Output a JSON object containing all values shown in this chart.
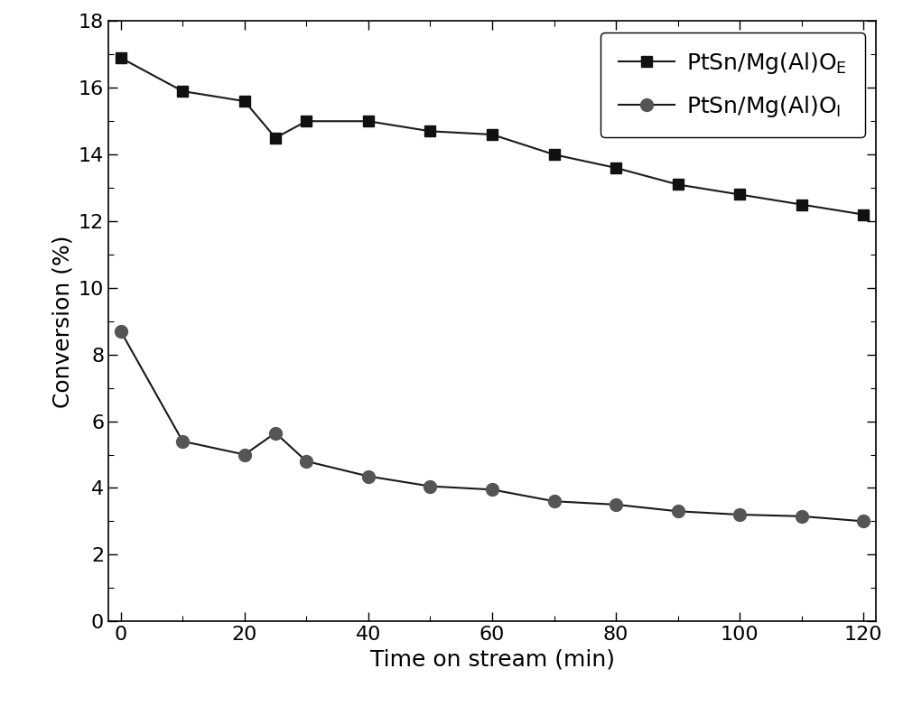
{
  "series1_label": "PtSn/Mg(Al)O$_\\mathrm{E}$",
  "series2_label": "PtSn/Mg(Al)O$_\\mathrm{I}$",
  "series1_x": [
    0,
    10,
    20,
    25,
    30,
    40,
    50,
    60,
    70,
    80,
    90,
    100,
    110,
    120
  ],
  "series1_y": [
    16.9,
    15.9,
    15.6,
    14.5,
    15.0,
    15.0,
    14.7,
    14.6,
    14.0,
    13.6,
    13.1,
    12.8,
    12.5,
    12.2
  ],
  "series2_x": [
    0,
    10,
    20,
    25,
    30,
    40,
    50,
    60,
    70,
    80,
    90,
    100,
    110,
    120
  ],
  "series2_y": [
    8.7,
    5.4,
    5.0,
    5.65,
    4.8,
    4.35,
    4.05,
    3.95,
    3.6,
    3.5,
    3.3,
    3.2,
    3.15,
    3.0
  ],
  "xlabel": "Time on stream (min)",
  "ylabel": "Conversion (%)",
  "xlim": [
    -2,
    122
  ],
  "ylim": [
    0,
    18
  ],
  "xticks": [
    0,
    20,
    40,
    60,
    80,
    100,
    120
  ],
  "yticks": [
    0,
    2,
    4,
    6,
    8,
    10,
    12,
    14,
    16,
    18
  ],
  "line_color": "#1a1a1a",
  "marker1": "s",
  "marker2": "o",
  "marker_color1": "#111111",
  "marker_color2": "#555555",
  "markersize1": 8,
  "markersize2": 10,
  "linewidth": 1.5,
  "legend_loc": "upper right",
  "font_size": 18,
  "tick_font_size": 16,
  "label_fontsize": 18
}
